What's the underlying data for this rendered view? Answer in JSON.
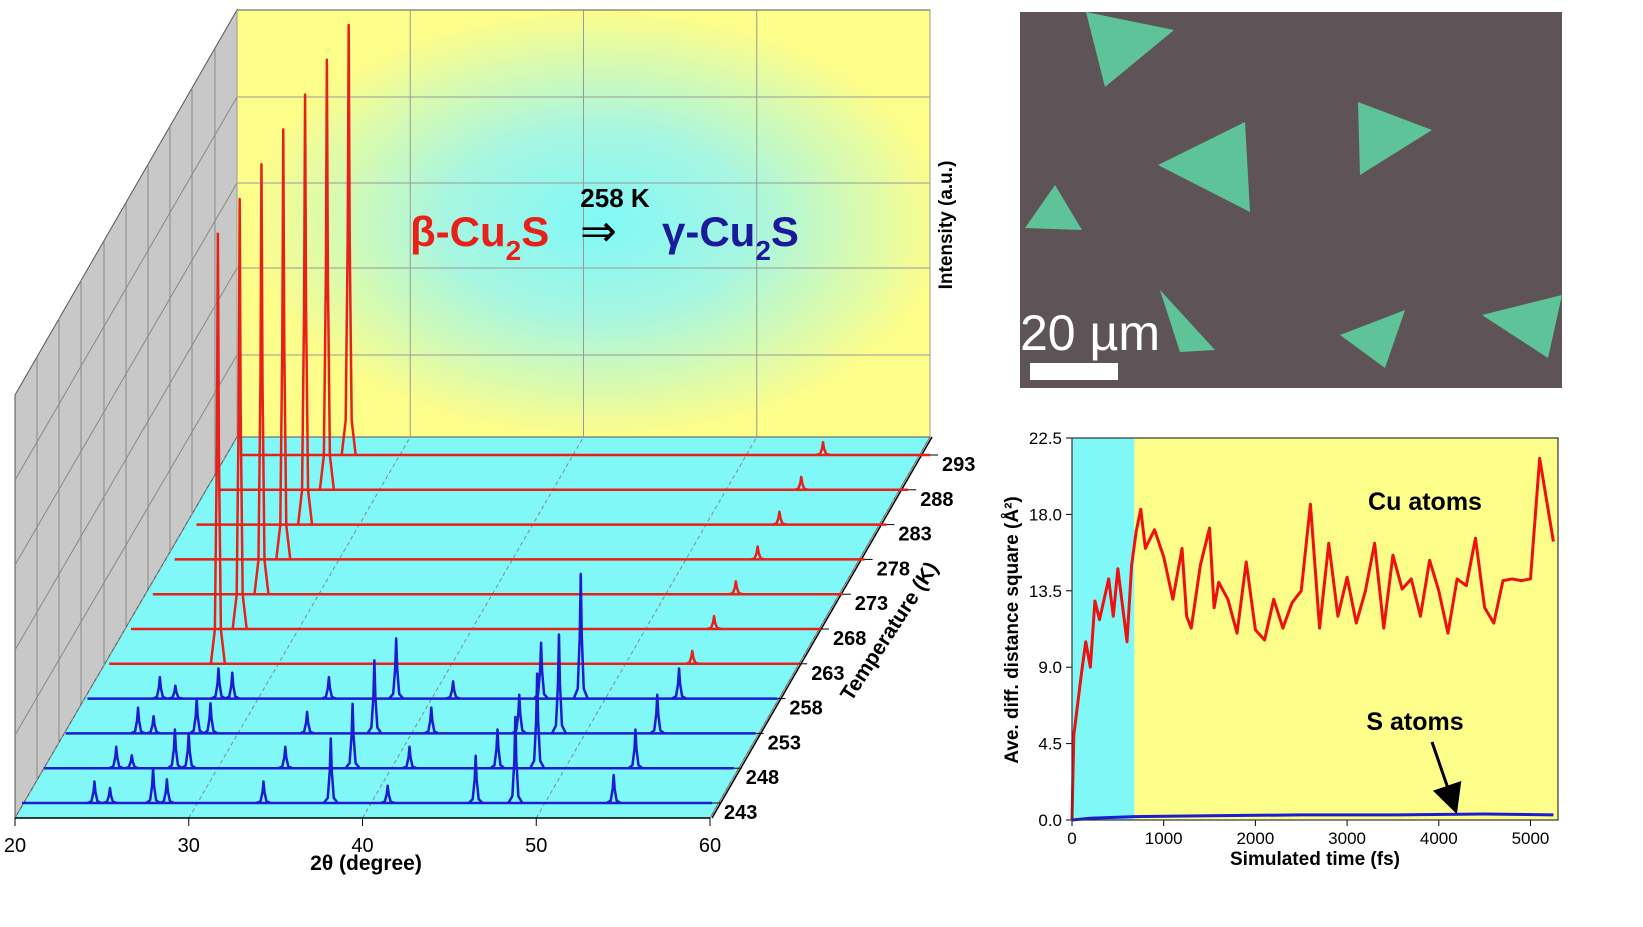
{
  "chart_data": [
    {
      "type": "waterfall",
      "xlabel": "2θ (degree)",
      "ylabel": "Intensity (a.u.)",
      "zlabel": "Temperature (K)",
      "annotation": {
        "label": "258 K",
        "from": [
          "β-Cu",
          "2",
          "S"
        ],
        "arrow": "⇒",
        "to": [
          "γ-Cu",
          "2",
          "S"
        ]
      },
      "xlim": [
        20,
        60
      ],
      "xticks": [
        20,
        30,
        40,
        50,
        60
      ],
      "ylim": [
        0,
        100
      ],
      "series": [
        {
          "name": "243",
          "color": "#1c1cd0",
          "x": [
            24.2,
            25.1,
            27.6,
            28.4,
            34.0,
            37.9,
            41.2,
            46.3,
            48.6,
            54.3
          ],
          "values": [
            5,
            3.5,
            8,
            5.5,
            5,
            15,
            4,
            11,
            20,
            6.5
          ]
        },
        {
          "name": "248",
          "color": "#1c1cd0",
          "x": [
            24.2,
            25.1,
            27.6,
            28.4,
            34.0,
            37.9,
            41.2,
            46.3,
            48.6,
            54.3
          ],
          "values": [
            5,
            3,
            9,
            8,
            5,
            15,
            5,
            9,
            22,
            9
          ]
        },
        {
          "name": "253",
          "color": "#1c1cd0",
          "x": [
            24.2,
            25.1,
            27.6,
            28.4,
            34.0,
            37.9,
            41.2,
            46.3,
            48.6,
            54.3
          ],
          "values": [
            6,
            4,
            8,
            7,
            5,
            17,
            6,
            9,
            23,
            9
          ]
        },
        {
          "name": "258",
          "color": "#1c1cd0",
          "x": [
            24.2,
            25.1,
            27.6,
            28.4,
            34.0,
            37.9,
            41.2,
            46.3,
            48.6,
            54.3
          ],
          "values": [
            5,
            3,
            7,
            6,
            5,
            14,
            4,
            13,
            29,
            7
          ]
        },
        {
          "name": "263",
          "color": "#e8201a",
          "x": [
            26.3,
            53.8
          ],
          "values": [
            100,
            3
          ]
        },
        {
          "name": "268",
          "color": "#e8201a",
          "x": [
            26.3,
            53.8
          ],
          "values": [
            100,
            3
          ]
        },
        {
          "name": "273",
          "color": "#e8201a",
          "x": [
            26.3,
            53.8
          ],
          "values": [
            100,
            3
          ]
        },
        {
          "name": "278",
          "color": "#e8201a",
          "x": [
            26.3,
            53.8
          ],
          "values": [
            100,
            3
          ]
        },
        {
          "name": "283",
          "color": "#e8201a",
          "x": [
            26.3,
            53.8
          ],
          "values": [
            100,
            3
          ]
        },
        {
          "name": "288",
          "color": "#e8201a",
          "x": [
            26.3,
            53.8
          ],
          "values": [
            100,
            3
          ]
        },
        {
          "name": "293",
          "color": "#e8201a",
          "x": [
            26.3,
            53.8
          ],
          "values": [
            100,
            3
          ]
        }
      ]
    },
    {
      "type": "line",
      "xlabel": "Simulated time (fs)",
      "ylabel": "Ave. diff. distance square (Å²)",
      "xlim": [
        0,
        5300
      ],
      "xticks": [
        0,
        1000,
        2000,
        3000,
        4000,
        5000
      ],
      "ylim": [
        0,
        22.5
      ],
      "yticks": [
        {
          "value": 0,
          "label": "0.0"
        },
        4.5,
        {
          "value": 9,
          "label": "9.0"
        },
        13.5,
        {
          "value": 18,
          "label": "18.0"
        },
        22.5
      ],
      "regions": [
        {
          "xlim": [
            0,
            680
          ],
          "color": "#80f8f8"
        },
        {
          "xlim": [
            680,
            5300
          ],
          "color": "#fdfd8a"
        }
      ],
      "series": [
        {
          "name": "Cu atoms",
          "color": "#ee1111",
          "x": [
            0,
            20,
            100,
            150,
            200,
            250,
            300,
            400,
            450,
            500,
            600,
            650,
            700,
            750,
            800,
            900,
            1000,
            1100,
            1200,
            1250,
            1300,
            1400,
            1500,
            1550,
            1600,
            1700,
            1800,
            1900,
            2000,
            2100,
            2200,
            2300,
            2400,
            2500,
            2600,
            2700,
            2800,
            2900,
            3000,
            3100,
            3200,
            3300,
            3400,
            3500,
            3600,
            3700,
            3800,
            3900,
            4000,
            4100,
            4200,
            4300,
            4400,
            4500,
            4600,
            4700,
            4800,
            4900,
            5000,
            5100,
            5250
          ],
          "values": [
            0,
            5,
            8.5,
            10.5,
            9,
            12.9,
            11.8,
            14.2,
            12,
            14.8,
            10.5,
            15,
            17,
            18.3,
            16,
            17.1,
            15.5,
            13,
            16,
            12,
            11.3,
            15,
            17.2,
            12.5,
            14,
            13,
            11,
            15.2,
            11.2,
            10.6,
            13,
            11.3,
            12.8,
            13.5,
            18.6,
            11.3,
            16.3,
            12,
            14.3,
            11.6,
            13.5,
            16.3,
            11.3,
            15.6,
            13.6,
            14.2,
            12,
            15.3,
            13.5,
            11,
            14.2,
            13.8,
            16.6,
            12.5,
            11.6,
            14.1,
            14.2,
            14.1,
            14.2,
            21.3,
            16.4
          ]
        },
        {
          "name": "S atoms",
          "color": "#1c1cd0",
          "x": [
            0,
            200,
            680,
            1500,
            2500,
            3500,
            4500,
            5250
          ],
          "values": [
            0,
            0.1,
            0.2,
            0.25,
            0.3,
            0.3,
            0.35,
            0.3
          ]
        }
      ]
    }
  ],
  "micrograph": {
    "scale_bar_label": "20 µm"
  }
}
